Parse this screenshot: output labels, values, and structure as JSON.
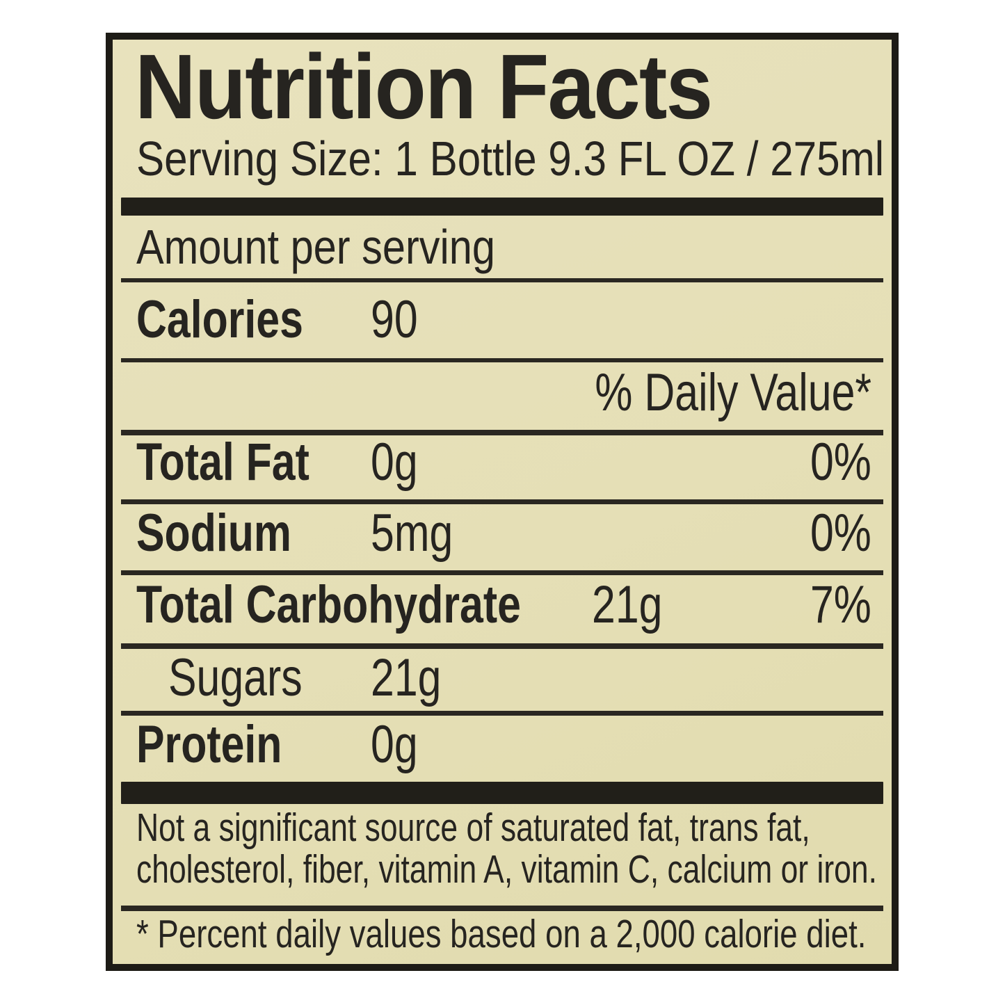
{
  "label": {
    "title": "Nutrition Facts",
    "serving_size": "Serving Size: 1 Bottle 9.3 FL OZ / 275ml",
    "amount_per_serving": "Amount per serving",
    "calories": {
      "name": "Calories",
      "value": "90"
    },
    "daily_value_header": "% Daily Value*",
    "nutrients": [
      {
        "name": "Total Fat",
        "amount": "0g",
        "dv": "0%"
      },
      {
        "name": "Sodium",
        "amount": "5mg",
        "dv": "0%"
      },
      {
        "name": "Total Carbohydrate",
        "amount": "21g",
        "dv": "7%"
      },
      {
        "name": "Sugars",
        "amount": "21g",
        "dv": ""
      },
      {
        "name": "Protein",
        "amount": "0g",
        "dv": ""
      }
    ],
    "footnote_lines": [
      "Not a significant source of saturated fat, trans fat,",
      "cholesterol, fiber, vitamin A, vitamin C, calcium or iron."
    ],
    "disclaimer": "* Percent daily values based on a 2,000 calorie diet.",
    "colors": {
      "label_background": "#e5dfb6",
      "ink": "#262420",
      "page_background": "#ffffff"
    }
  }
}
